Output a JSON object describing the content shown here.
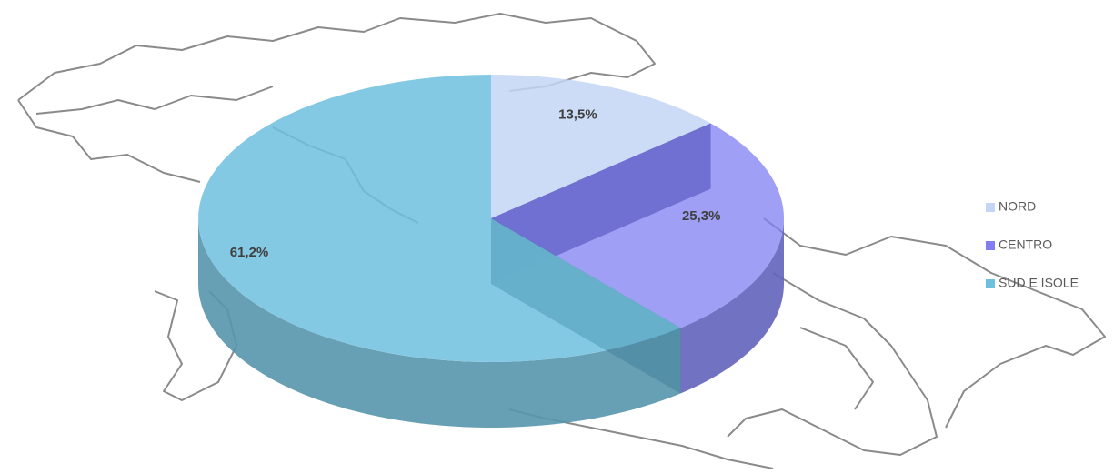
{
  "chart_data": {
    "type": "pie",
    "categories": [
      "NORD",
      "CENTRO",
      "SUD E ISOLE"
    ],
    "values": [
      13.5,
      25.3,
      61.2
    ],
    "value_labels": [
      "13,5%",
      "25,3%",
      "61,2%"
    ],
    "colors": [
      "#c3d6f6",
      "#7f7ff2",
      "#6fc0de"
    ],
    "legend": "right"
  }
}
